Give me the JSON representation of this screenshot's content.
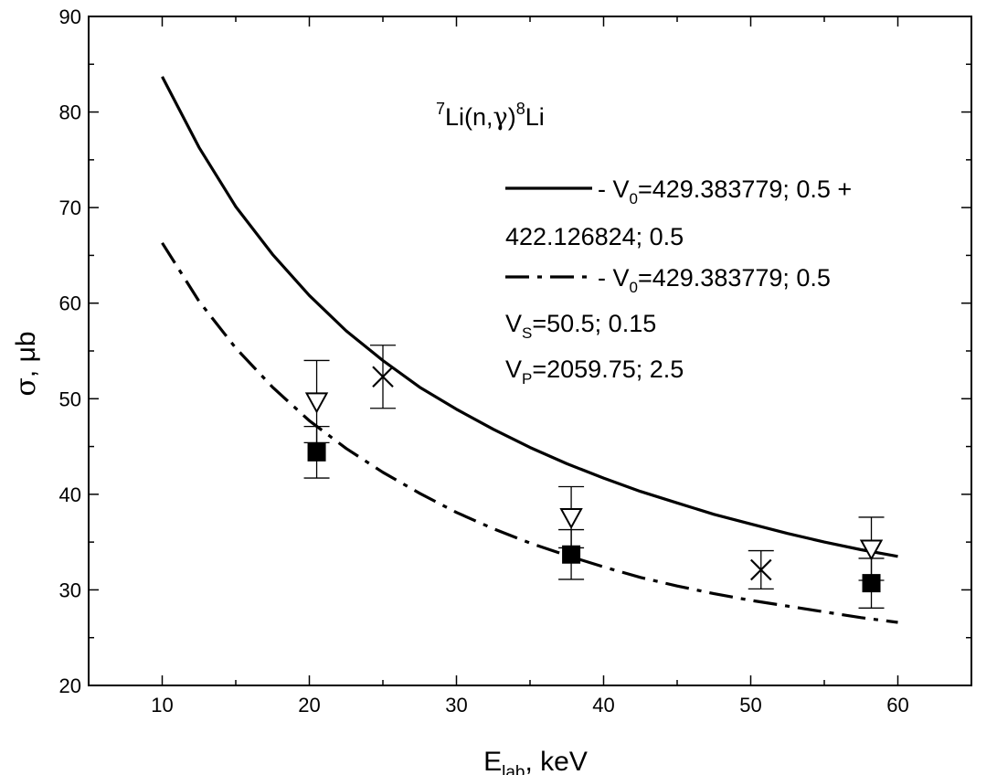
{
  "chart_data": {
    "type": "line",
    "title": "",
    "reaction_label": {
      "pre": "7",
      "main": "Li(n,",
      "gamma": "γ",
      "close": ")",
      "post_sup": "8",
      "tail": "Li"
    },
    "xlabel": {
      "main": "E",
      "sub": "lab",
      "tail": ", keV"
    },
    "ylabel": {
      "sigma": "σ",
      "tail": ", μb"
    },
    "xlim": [
      5,
      65
    ],
    "ylim": [
      20,
      90
    ],
    "xticks": [
      10,
      20,
      30,
      40,
      50,
      60
    ],
    "yticks": [
      20,
      30,
      40,
      50,
      60,
      70,
      80,
      90
    ],
    "grid": false,
    "legend_position": "top-right",
    "legend": {
      "solid_line1": "- V",
      "solid_sub": "0",
      "solid_rest": "=429.383779; 0.5 +",
      "solid_line2": "422.126824; 0.5",
      "dashdot_line1": "- V",
      "dashdot_sub": "0",
      "dashdot_rest": "=429.383779; 0.5",
      "vs_pre": "V",
      "vs_sub": "S",
      "vs_rest": "=50.5; 0.15",
      "vp_pre": "V",
      "vp_sub": "P",
      "vp_rest": "=2059.75; 2.5"
    },
    "series": [
      {
        "style": "solid",
        "x": [
          10,
          12.5,
          15,
          17.5,
          20,
          22.5,
          25,
          27.5,
          30,
          32.5,
          35,
          37.5,
          40,
          42.5,
          45,
          47.5,
          50,
          52.5,
          55,
          57.5,
          60
        ],
        "y": [
          83.7,
          76.3,
          70.1,
          65.1,
          60.8,
          57.1,
          54.0,
          51.2,
          48.9,
          46.8,
          44.9,
          43.2,
          41.7,
          40.3,
          39.1,
          37.9,
          36.9,
          35.9,
          35.0,
          34.2,
          33.5
        ]
      },
      {
        "style": "dashdot",
        "x": [
          10,
          12.5,
          15,
          17.5,
          20,
          22.5,
          25,
          27.5,
          30,
          32.5,
          35,
          37.5,
          40,
          42.5,
          45,
          47.5,
          50,
          52.5,
          55,
          57.5,
          60
        ],
        "y": [
          66.3,
          60.2,
          55.3,
          51.2,
          47.7,
          44.8,
          42.3,
          40.1,
          38.1,
          36.4,
          34.9,
          33.6,
          32.4,
          31.3,
          30.4,
          29.6,
          28.9,
          28.3,
          27.7,
          27.1,
          26.6
        ]
      }
    ],
    "points": [
      {
        "marker": "triangle-down-open",
        "x": [
          20.5,
          37.8,
          58.2
        ],
        "y": [
          49.7,
          37.6,
          34.3
        ],
        "yerr": [
          4.3,
          3.2,
          3.3
        ]
      },
      {
        "marker": "square-filled",
        "x": [
          20.5,
          37.8,
          58.2
        ],
        "y": [
          44.4,
          33.7,
          30.7
        ],
        "yerr": [
          2.7,
          2.6,
          2.6
        ]
      },
      {
        "marker": "cross",
        "x": [
          25.0,
          50.7
        ],
        "y": [
          52.3,
          32.1
        ],
        "yerr": [
          3.3,
          2.0
        ]
      }
    ]
  }
}
